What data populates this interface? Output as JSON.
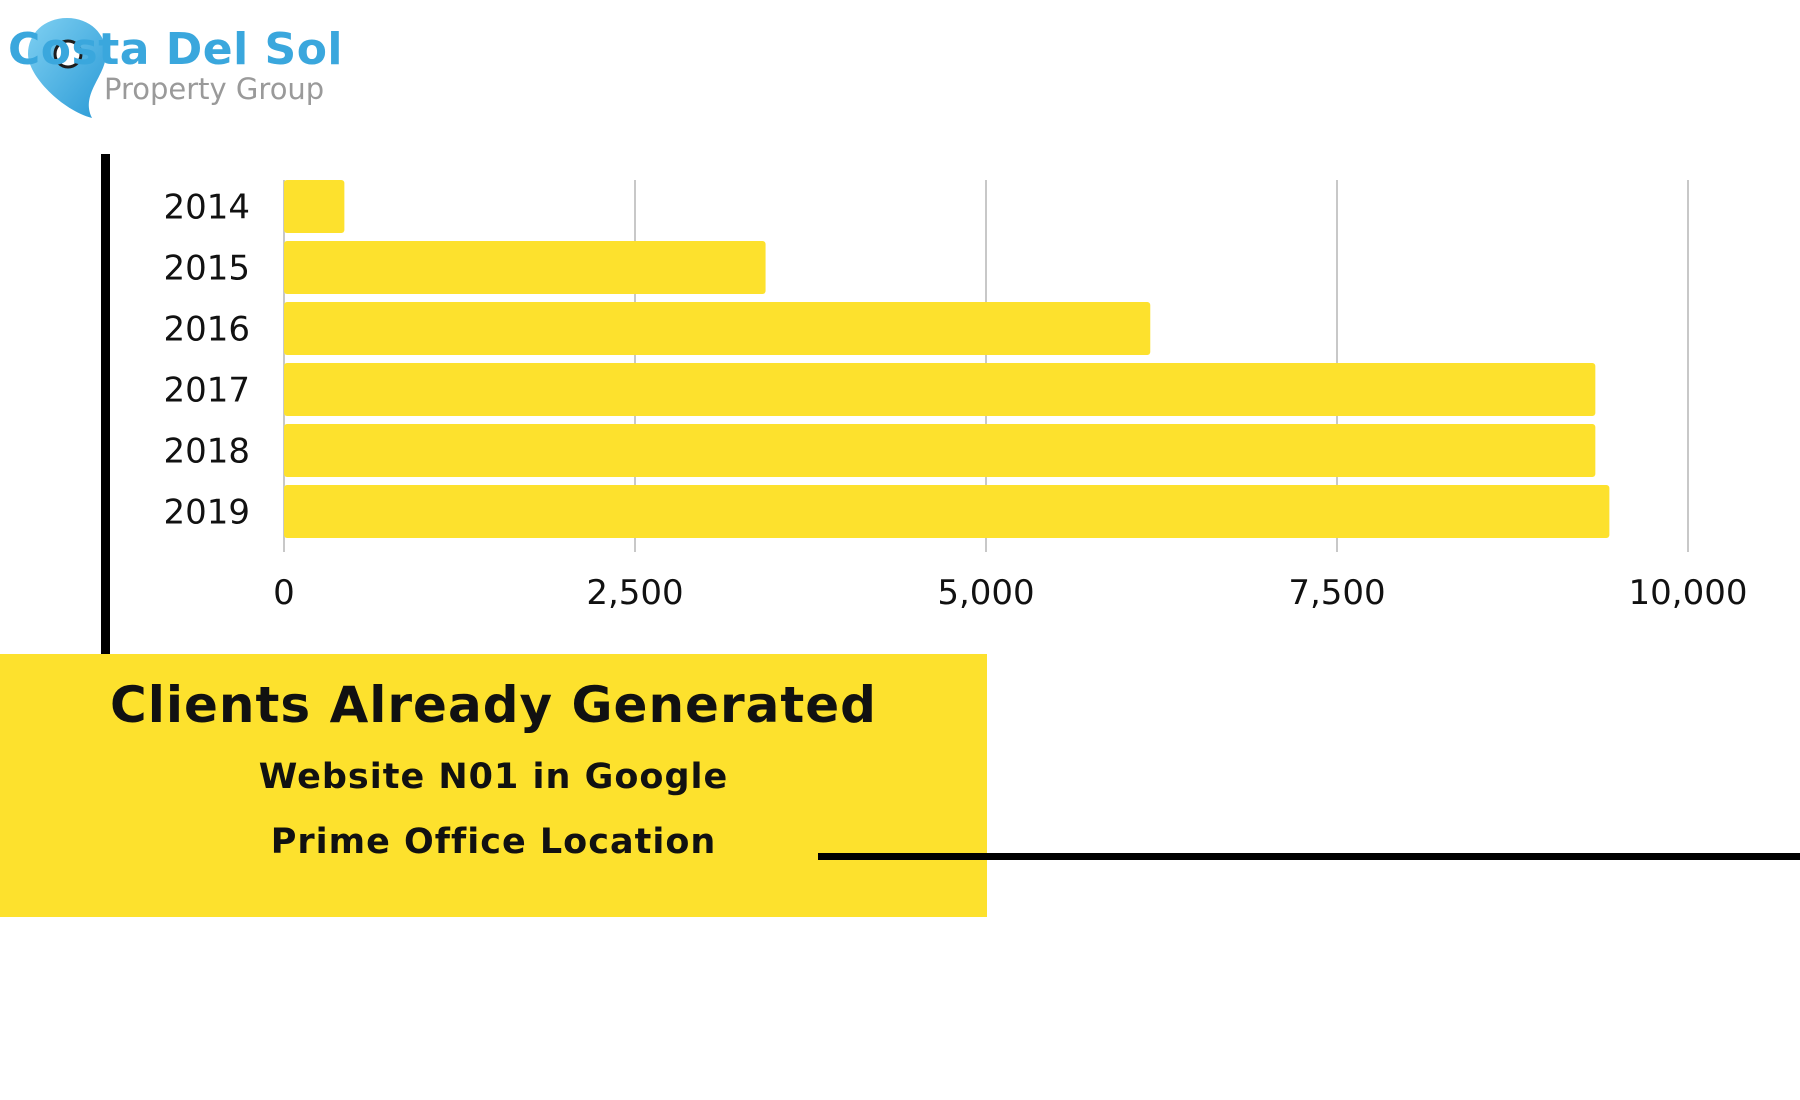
{
  "logo": {
    "title": "Costa Del Sol",
    "subtitle": "Property Group",
    "icon": "map-pin-icon",
    "title_color": "#3aa7dd",
    "subtitle_color": "#9a9a9a"
  },
  "chart_data": {
    "type": "bar",
    "orientation": "horizontal",
    "categories": [
      "2014",
      "2015",
      "2016",
      "2017",
      "2018",
      "2019"
    ],
    "values": [
      430,
      3430,
      6170,
      9340,
      9340,
      9440
    ],
    "xlim": [
      0,
      10000
    ],
    "xticks": [
      0,
      2500,
      5000,
      7500,
      10000
    ],
    "xtick_labels": [
      "0",
      "2,500",
      "5,000",
      "7,500",
      "10,000"
    ],
    "title": "",
    "xlabel": "",
    "ylabel": "",
    "grid": true,
    "bar_color": "#fde12d",
    "grid_color": "#c8c8c8"
  },
  "caption": {
    "title": "Clients Already Generated",
    "line1": "Website N01 in Google",
    "line2": "Prime Office Location",
    "background": "#fde12d"
  }
}
